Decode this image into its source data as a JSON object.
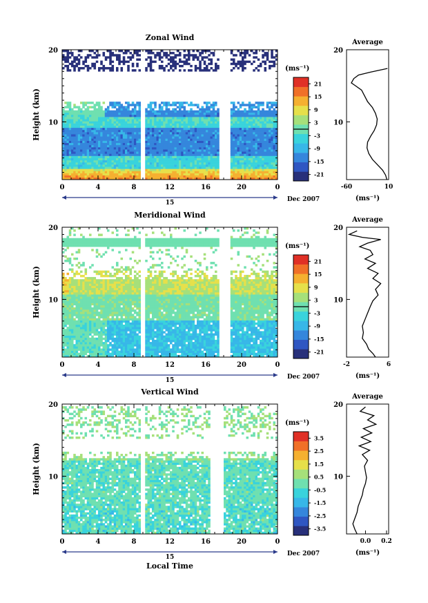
{
  "figure": {
    "shared": {
      "xlabel": "Local Time",
      "x_ticks": [
        "0",
        "4",
        "8",
        "12",
        "16",
        "20",
        "0"
      ],
      "day_label": "15",
      "month_label": "Dec 2007",
      "unit_label": "(ms⁻¹)",
      "avg_unit_label": "(ms⁻¹)",
      "avg_title": "Average"
    }
  },
  "chart_data": [
    {
      "type": "heatmap",
      "title": "Zonal Wind",
      "ylabel": "Height (km)",
      "y_ticks": [
        "20",
        "10"
      ],
      "ylim": [
        2,
        20
      ],
      "xlim": [
        0,
        24
      ],
      "data_gaps_hours": [
        [
          8.8,
          9.3
        ],
        [
          17.5,
          18.8
        ]
      ],
      "colorbar": {
        "ticks": [
          "21",
          "15",
          "9",
          "3",
          "-3",
          "-9",
          "-15",
          "-21"
        ],
        "range": [
          -24,
          24
        ],
        "zero_line": true
      },
      "colormap": [
        "#28307a",
        "#2f56c2",
        "#3586dc",
        "#37b7e8",
        "#39d3dc",
        "#6fe0b0",
        "#a6e07a",
        "#e6e04a",
        "#f5b030",
        "#f07028",
        "#e03026"
      ],
      "average_profile": {
        "x_ticks": [
          "-60",
          "10"
        ],
        "xlim": [
          -60,
          10
        ],
        "y_ticks": [
          "20",
          "10"
        ],
        "points": [
          [
            8,
            17.4
          ],
          [
            -20,
            16.9
          ],
          [
            -40,
            16.5
          ],
          [
            -48,
            16.0
          ],
          [
            -52,
            15.4
          ],
          [
            -45,
            15.0
          ],
          [
            -35,
            14.4
          ],
          [
            -30,
            13.6
          ],
          [
            -25,
            12.8
          ],
          [
            -17,
            12.0
          ],
          [
            -12,
            11.2
          ],
          [
            -9,
            10.4
          ],
          [
            -10,
            9.6
          ],
          [
            -14,
            8.8
          ],
          [
            -20,
            8.0
          ],
          [
            -25,
            7.2
          ],
          [
            -26,
            6.4
          ],
          [
            -23,
            5.6
          ],
          [
            -17,
            4.8
          ],
          [
            -8,
            4.0
          ],
          [
            0,
            3.3
          ],
          [
            5,
            2.6
          ],
          [
            7,
            2.0
          ]
        ]
      }
    },
    {
      "type": "heatmap",
      "title": "Meridional Wind",
      "ylabel": "Height (km)",
      "y_ticks": [
        "20",
        "10"
      ],
      "ylim": [
        2,
        20
      ],
      "xlim": [
        0,
        24
      ],
      "data_gaps_hours": [
        [
          8.8,
          9.3
        ],
        [
          17.5,
          18.8
        ]
      ],
      "colorbar": {
        "ticks": [
          "21",
          "15",
          "9",
          "3",
          "-3",
          "-9",
          "-15",
          "-21"
        ],
        "range": [
          -24,
          24
        ],
        "zero_line": true
      },
      "colormap": [
        "#28307a",
        "#2f56c2",
        "#3586dc",
        "#37b7e8",
        "#39d3dc",
        "#6fe0b0",
        "#a6e07a",
        "#e6e04a",
        "#f5b030",
        "#f07028",
        "#e03026"
      ],
      "average_profile": {
        "x_ticks": [
          "-2",
          "6"
        ],
        "xlim": [
          -2,
          6
        ],
        "y_ticks": [
          "20",
          "10"
        ],
        "points": [
          [
            0,
            19.5
          ],
          [
            -1.5,
            19.0
          ],
          [
            1,
            18.6
          ],
          [
            4.5,
            18.3
          ],
          [
            2,
            17.8
          ],
          [
            0.5,
            17.3
          ],
          [
            2.5,
            16.8
          ],
          [
            3,
            16.2
          ],
          [
            1.5,
            15.6
          ],
          [
            3.5,
            15.0
          ],
          [
            2,
            14.3
          ],
          [
            4,
            13.6
          ],
          [
            3,
            12.9
          ],
          [
            4.5,
            12.2
          ],
          [
            3.5,
            11.4
          ],
          [
            4,
            10.6
          ],
          [
            3,
            9.8
          ],
          [
            2.5,
            9.0
          ],
          [
            2,
            8.1
          ],
          [
            1.5,
            7.2
          ],
          [
            1,
            6.3
          ],
          [
            1.2,
            5.4
          ],
          [
            1,
            4.6
          ],
          [
            1.8,
            3.8
          ],
          [
            2.2,
            3.1
          ],
          [
            3,
            2.5
          ],
          [
            3.5,
            2.0
          ]
        ]
      }
    },
    {
      "type": "heatmap",
      "title": "Vertical Wind",
      "ylabel": "Height (km)",
      "y_ticks": [
        "20",
        "10"
      ],
      "ylim": [
        2,
        20
      ],
      "xlim": [
        0,
        24
      ],
      "data_gaps_hours": [
        [
          8.8,
          9.3
        ],
        [
          16.6,
          18.0
        ]
      ],
      "colorbar": {
        "ticks": [
          "3.5",
          "2.5",
          "1.5",
          "0.5",
          "-0.5",
          "-1.5",
          "-2.5",
          "-3.5"
        ],
        "range": [
          -4,
          4
        ],
        "zero_line": false
      },
      "colormap": [
        "#28307a",
        "#2f56c2",
        "#3586dc",
        "#37b7e8",
        "#39d3dc",
        "#6fe0b0",
        "#a6e07a",
        "#e6e04a",
        "#f5b030",
        "#f07028",
        "#e03026"
      ],
      "average_profile": {
        "x_ticks": [
          "0.0",
          "0.2"
        ],
        "xlim": [
          -0.18,
          0.22
        ],
        "y_ticks": [
          "20",
          "10"
        ],
        "points": [
          [
            0.0,
            19.6
          ],
          [
            -0.05,
            19.0
          ],
          [
            0.08,
            18.4
          ],
          [
            0.02,
            17.8
          ],
          [
            0.1,
            17.2
          ],
          [
            -0.02,
            16.6
          ],
          [
            0.06,
            16.0
          ],
          [
            -0.04,
            15.4
          ],
          [
            0.05,
            14.8
          ],
          [
            -0.06,
            14.2
          ],
          [
            0.04,
            13.6
          ],
          [
            -0.03,
            13.0
          ],
          [
            0.02,
            12.2
          ],
          [
            -0.01,
            11.4
          ],
          [
            0.0,
            10.6
          ],
          [
            0.01,
            9.8
          ],
          [
            0.0,
            9.0
          ],
          [
            -0.02,
            8.2
          ],
          [
            -0.03,
            7.4
          ],
          [
            -0.05,
            6.6
          ],
          [
            -0.07,
            5.8
          ],
          [
            -0.08,
            5.0
          ],
          [
            -0.1,
            4.2
          ],
          [
            -0.12,
            3.4
          ],
          [
            -0.1,
            2.6
          ],
          [
            -0.08,
            2.0
          ]
        ]
      }
    }
  ]
}
